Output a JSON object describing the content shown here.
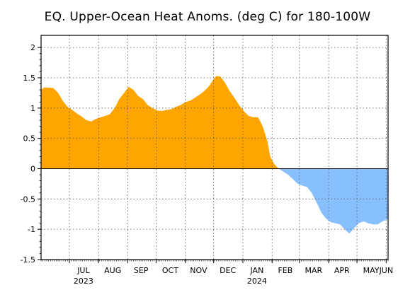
{
  "chart_data": {
    "type": "area",
    "title": "EQ. Upper-Ocean Heat Anoms. (deg C) for 180-100W",
    "xlabel": "",
    "ylabel": "",
    "ylim": [
      -1.5,
      2.2
    ],
    "xlim": [
      "2023-06-01",
      "2024-06-03"
    ],
    "grid": true,
    "positive_color": "#FFA500",
    "negative_color": "#87BFFF",
    "y_ticks": [
      "-1.5",
      "-1",
      "-0.5",
      "0",
      "0.5",
      "1",
      "1.5",
      "2"
    ],
    "x_tick_labels": [
      "JUL",
      "AUG",
      "SEP",
      "OCT",
      "NOV",
      "DEC",
      "JAN",
      "FEB",
      "MAR",
      "APR",
      "MAY",
      "JUN"
    ],
    "year_labels": [
      "2023",
      "2024"
    ],
    "series": [
      {
        "x": [
          "2023-06-01",
          "2023-06-04",
          "2023-06-09",
          "2023-06-14",
          "2023-06-19",
          "2023-06-24",
          "2023-06-29",
          "2023-07-04",
          "2023-07-09",
          "2023-07-14",
          "2023-07-19",
          "2023-07-24",
          "2023-07-29",
          "2023-08-03",
          "2023-08-08",
          "2023-08-13",
          "2023-08-18",
          "2023-08-23",
          "2023-08-28",
          "2023-09-02",
          "2023-09-07",
          "2023-09-12",
          "2023-09-17",
          "2023-09-22",
          "2023-09-27",
          "2023-10-02",
          "2023-10-07",
          "2023-10-12",
          "2023-10-17",
          "2023-10-22",
          "2023-10-27",
          "2023-11-01",
          "2023-11-06",
          "2023-11-11",
          "2023-11-16",
          "2023-11-21",
          "2023-11-26",
          "2023-12-01",
          "2023-12-04",
          "2023-12-08",
          "2023-12-13",
          "2023-12-18",
          "2023-12-23",
          "2023-12-28",
          "2024-01-02",
          "2024-01-07",
          "2024-01-12",
          "2024-01-17",
          "2024-01-22",
          "2024-01-27",
          "2024-01-30",
          "2024-02-03",
          "2024-02-08",
          "2024-02-13",
          "2024-02-18",
          "2024-02-23",
          "2024-02-28",
          "2024-03-04",
          "2024-03-09",
          "2024-03-14",
          "2024-03-19",
          "2024-03-24",
          "2024-03-29",
          "2024-04-03",
          "2024-04-08",
          "2024-04-13",
          "2024-04-18",
          "2024-04-23",
          "2024-04-28",
          "2024-05-03",
          "2024-05-08",
          "2024-05-13",
          "2024-05-18",
          "2024-05-23",
          "2024-05-28",
          "2024-06-03"
        ],
        "values": [
          1.3,
          1.34,
          1.34,
          1.33,
          1.25,
          1.12,
          1.02,
          0.97,
          0.91,
          0.86,
          0.8,
          0.78,
          0.82,
          0.85,
          0.87,
          0.9,
          1.0,
          1.15,
          1.25,
          1.35,
          1.3,
          1.2,
          1.15,
          1.05,
          1.0,
          0.96,
          0.95,
          0.97,
          0.98,
          1.02,
          1.05,
          1.1,
          1.12,
          1.17,
          1.22,
          1.28,
          1.36,
          1.48,
          1.53,
          1.52,
          1.42,
          1.28,
          1.17,
          1.05,
          0.95,
          0.87,
          0.85,
          0.85,
          0.7,
          0.45,
          0.2,
          0.08,
          0.0,
          -0.05,
          -0.1,
          -0.17,
          -0.25,
          -0.28,
          -0.3,
          -0.4,
          -0.55,
          -0.72,
          -0.82,
          -0.88,
          -0.9,
          -0.92,
          -1.0,
          -1.07,
          -0.98,
          -0.9,
          -0.87,
          -0.9,
          -0.92,
          -0.92,
          -0.87,
          -0.83
        ]
      }
    ]
  }
}
